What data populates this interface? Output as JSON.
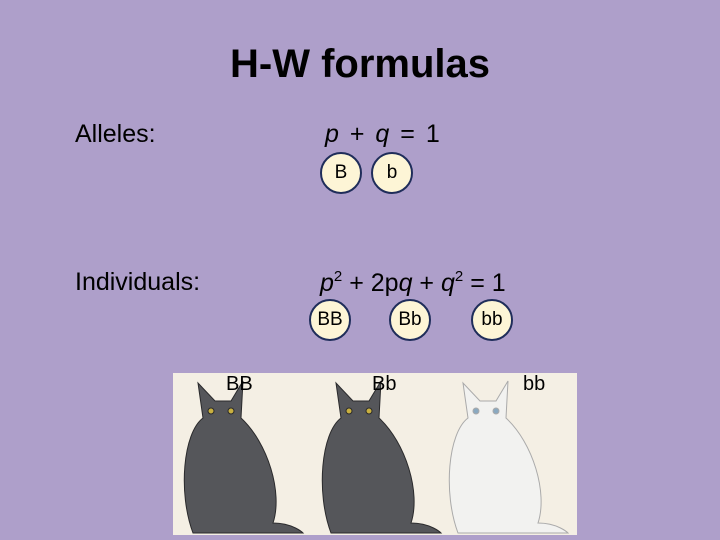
{
  "title": "H-W formulas",
  "alleles": {
    "label": "Alleles:",
    "formula": [
      "p",
      "+",
      "q",
      "=",
      "1"
    ],
    "symbols": [
      "B",
      "b"
    ]
  },
  "individuals": {
    "label": "Individuals:",
    "formula": [
      "p",
      "2",
      "+ 2p",
      "q",
      "+",
      "q",
      "2",
      "= 1"
    ],
    "symbols": [
      "BB",
      "Bb",
      "bb"
    ]
  },
  "cats": [
    "BB",
    "Bb",
    "bb"
  ]
}
